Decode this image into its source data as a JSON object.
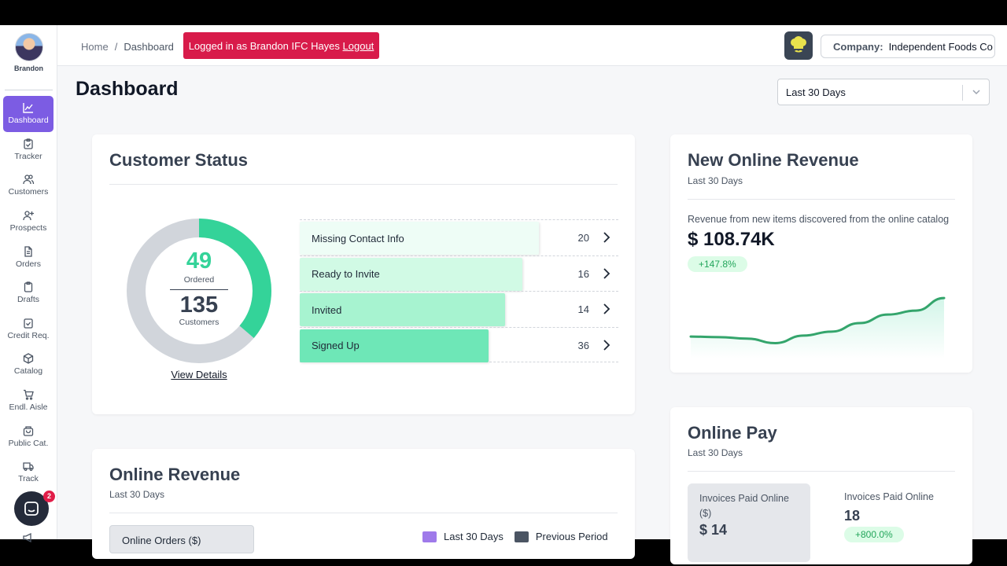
{
  "user": {
    "name": "Brandon"
  },
  "nav": [
    {
      "label": "Dashboard",
      "icon": "chart-line-icon",
      "active": true
    },
    {
      "label": "Tracker",
      "icon": "clipboard-check-icon"
    },
    {
      "label": "Customers",
      "icon": "users-icon"
    },
    {
      "label": "Prospects",
      "icon": "user-plus-icon"
    },
    {
      "label": "Orders",
      "icon": "document-icon"
    },
    {
      "label": "Drafts",
      "icon": "clipboard-icon"
    },
    {
      "label": "Credit Req.",
      "icon": "clipboard-check-icon"
    },
    {
      "label": "Catalog",
      "icon": "cube-icon"
    },
    {
      "label": "Endl. Aisle",
      "icon": "cart-icon"
    },
    {
      "label": "Public Cat.",
      "icon": "shopping-bag-icon"
    },
    {
      "label": "Track",
      "icon": "truck-icon"
    }
  ],
  "chat": {
    "badge": "2"
  },
  "breadcrumb": {
    "home": "Home",
    "separator": "/",
    "current": "Dashboard"
  },
  "login_banner": {
    "text": "Logged in as Brandon IFC Hayes ",
    "logout": "Logout"
  },
  "company": {
    "label": "Company:",
    "value": "Independent Foods Co"
  },
  "page": {
    "title": "Dashboard",
    "range": "Last 30 Days"
  },
  "customer_status": {
    "title": "Customer Status",
    "ordered_count": "49",
    "ordered_label": "Ordered",
    "customers_count": "135",
    "customers_label": "Customers",
    "ordered_fraction": 0.363,
    "view_details": "View Details",
    "funnel": [
      {
        "label": "Missing Contact Info",
        "count": "20",
        "color": "#eefdf6",
        "fill": 1.0
      },
      {
        "label": "Ready to Invite",
        "count": "16",
        "color": "#d1fae5",
        "fill": 0.93
      },
      {
        "label": "Invited",
        "count": "14",
        "color": "#a7f3d0",
        "fill": 0.86
      },
      {
        "label": "Signed Up",
        "count": "36",
        "color": "#6ee7b7",
        "fill": 0.79
      }
    ]
  },
  "new_online_revenue": {
    "title": "New Online Revenue",
    "subtitle": "Last 30 Days",
    "description": "Revenue from new items discovered from the online catalog",
    "amount": "$ 108.74K",
    "change": "+147.8%",
    "trend": [
      0.78,
      0.77,
      0.74,
      0.65,
      0.8,
      0.88,
      1.05,
      1.22,
      1.3,
      1.55
    ]
  },
  "online_revenue": {
    "title": "Online Revenue",
    "subtitle": "Last 30 Days",
    "tab": "Online Orders ($)",
    "legend": [
      {
        "label": "Last 30 Days",
        "color": "#9f7aea"
      },
      {
        "label": "Previous Period",
        "color": "#4b5563"
      }
    ]
  },
  "online_pay": {
    "title": "Online Pay",
    "subtitle": "Last 30 Days",
    "metric1_label": "Invoices Paid Online ($)",
    "metric1_value": "$ 14",
    "metric2_label": "Invoices Paid Online",
    "metric2_value": "18",
    "metric2_change": "+800.0%"
  }
}
